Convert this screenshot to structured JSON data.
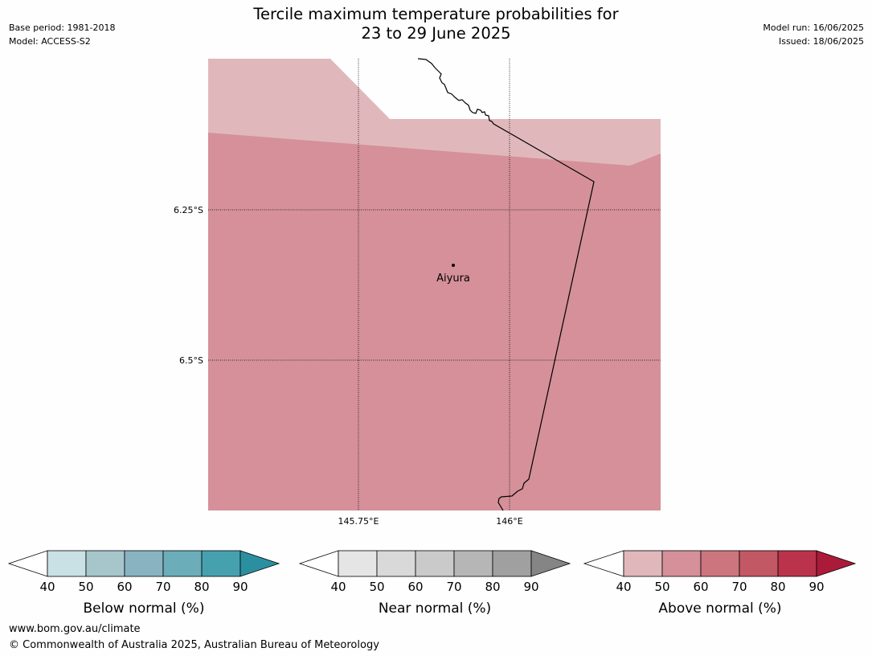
{
  "header": {
    "title_line1": "Tercile maximum temperature probabilities for",
    "title_line2": "23 to 29 June 2025",
    "base_period": "Base period: 1981-2018",
    "model": "Model: ACCESS-S2",
    "model_run": "Model run: 16/06/2025",
    "issued": "Issued: 18/06/2025"
  },
  "map": {
    "lat_labels": [
      "6.25°S",
      "6.5°S"
    ],
    "lon_labels": [
      "145.75°E",
      "146°E"
    ],
    "place": "Aiyura",
    "colors": {
      "above_40_50": "#e0b8bc",
      "above_50_60": "#d59099"
    }
  },
  "colorbars": [
    {
      "name": "below",
      "label": "Below normal (%)",
      "ticks": [
        "40",
        "50",
        "60",
        "70",
        "80",
        "90"
      ],
      "colors": [
        "#c9e1e5",
        "#a6c6cb",
        "#89b3c0",
        "#6baeb9",
        "#46a1af",
        "#2a909f"
      ]
    },
    {
      "name": "near",
      "label": "Near normal (%)",
      "ticks": [
        "40",
        "50",
        "60",
        "70",
        "80",
        "90"
      ],
      "colors": [
        "#e5e5e5",
        "#d9d9d9",
        "#cacaca",
        "#b6b6b6",
        "#a0a0a0",
        "#858585"
      ]
    },
    {
      "name": "above",
      "label": "Above normal (%)",
      "ticks": [
        "40",
        "50",
        "60",
        "70",
        "80",
        "90"
      ],
      "colors": [
        "#e0b8bc",
        "#d59099",
        "#cc757e",
        "#c35865",
        "#ba334b",
        "#ac1a3a"
      ]
    }
  ],
  "footer": {
    "url": "www.bom.gov.au/climate",
    "copyright": "© Commonwealth of Australia 2025, Australian Bureau of Meteorology"
  }
}
